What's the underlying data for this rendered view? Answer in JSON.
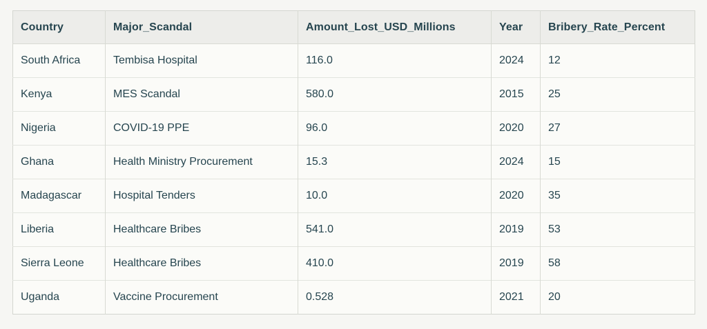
{
  "table": {
    "columns": [
      {
        "key": "country",
        "label": "Country"
      },
      {
        "key": "major_scandal",
        "label": "Major_Scandal"
      },
      {
        "key": "amount_lost_usd_millions",
        "label": "Amount_Lost_USD_Millions"
      },
      {
        "key": "year",
        "label": "Year"
      },
      {
        "key": "bribery_rate_percent",
        "label": "Bribery_Rate_Percent"
      }
    ],
    "rows": [
      {
        "country": "South Africa",
        "major_scandal": "Tembisa Hospital",
        "amount_lost_usd_millions": "116.0",
        "year": "2024",
        "bribery_rate_percent": "12"
      },
      {
        "country": "Kenya",
        "major_scandal": "MES Scandal",
        "amount_lost_usd_millions": "580.0",
        "year": "2015",
        "bribery_rate_percent": "25"
      },
      {
        "country": "Nigeria",
        "major_scandal": "COVID-19 PPE",
        "amount_lost_usd_millions": "96.0",
        "year": "2020",
        "bribery_rate_percent": "27"
      },
      {
        "country": "Ghana",
        "major_scandal": "Health Ministry Procurement",
        "amount_lost_usd_millions": "15.3",
        "year": "2024",
        "bribery_rate_percent": "15"
      },
      {
        "country": "Madagascar",
        "major_scandal": "Hospital Tenders",
        "amount_lost_usd_millions": "10.0",
        "year": "2020",
        "bribery_rate_percent": "35"
      },
      {
        "country": "Liberia",
        "major_scandal": "Healthcare Bribes",
        "amount_lost_usd_millions": "541.0",
        "year": "2019",
        "bribery_rate_percent": "53"
      },
      {
        "country": "Sierra Leone",
        "major_scandal": "Healthcare Bribes",
        "amount_lost_usd_millions": "410.0",
        "year": "2019",
        "bribery_rate_percent": "58"
      },
      {
        "country": "Uganda",
        "major_scandal": "Vaccine Procurement",
        "amount_lost_usd_millions": "0.528",
        "year": "2021",
        "bribery_rate_percent": "20"
      }
    ]
  },
  "chart_data": {
    "type": "table",
    "columns": [
      "Country",
      "Major_Scandal",
      "Amount_Lost_USD_Millions",
      "Year",
      "Bribery_Rate_Percent"
    ],
    "rows": [
      [
        "South Africa",
        "Tembisa Hospital",
        116.0,
        2024,
        12
      ],
      [
        "Kenya",
        "MES Scandal",
        580.0,
        2015,
        25
      ],
      [
        "Nigeria",
        "COVID-19 PPE",
        96.0,
        2020,
        27
      ],
      [
        "Ghana",
        "Health Ministry Procurement",
        15.3,
        2024,
        15
      ],
      [
        "Madagascar",
        "Hospital Tenders",
        10.0,
        2020,
        35
      ],
      [
        "Liberia",
        "Healthcare Bribes",
        541.0,
        2019,
        53
      ],
      [
        "Sierra Leone",
        "Healthcare Bribes",
        410.0,
        2019,
        58
      ],
      [
        "Uganda",
        "Vaccine Procurement",
        0.528,
        2021,
        20
      ]
    ]
  },
  "colors": {
    "page_background": "#f6f6f3",
    "cell_background": "#fbfbf8",
    "header_background": "#ededea",
    "border_outer": "#d4d6d0",
    "border_vertical": "#d8dad3",
    "border_horizontal": "#e2e4de",
    "text": "#26454f"
  }
}
